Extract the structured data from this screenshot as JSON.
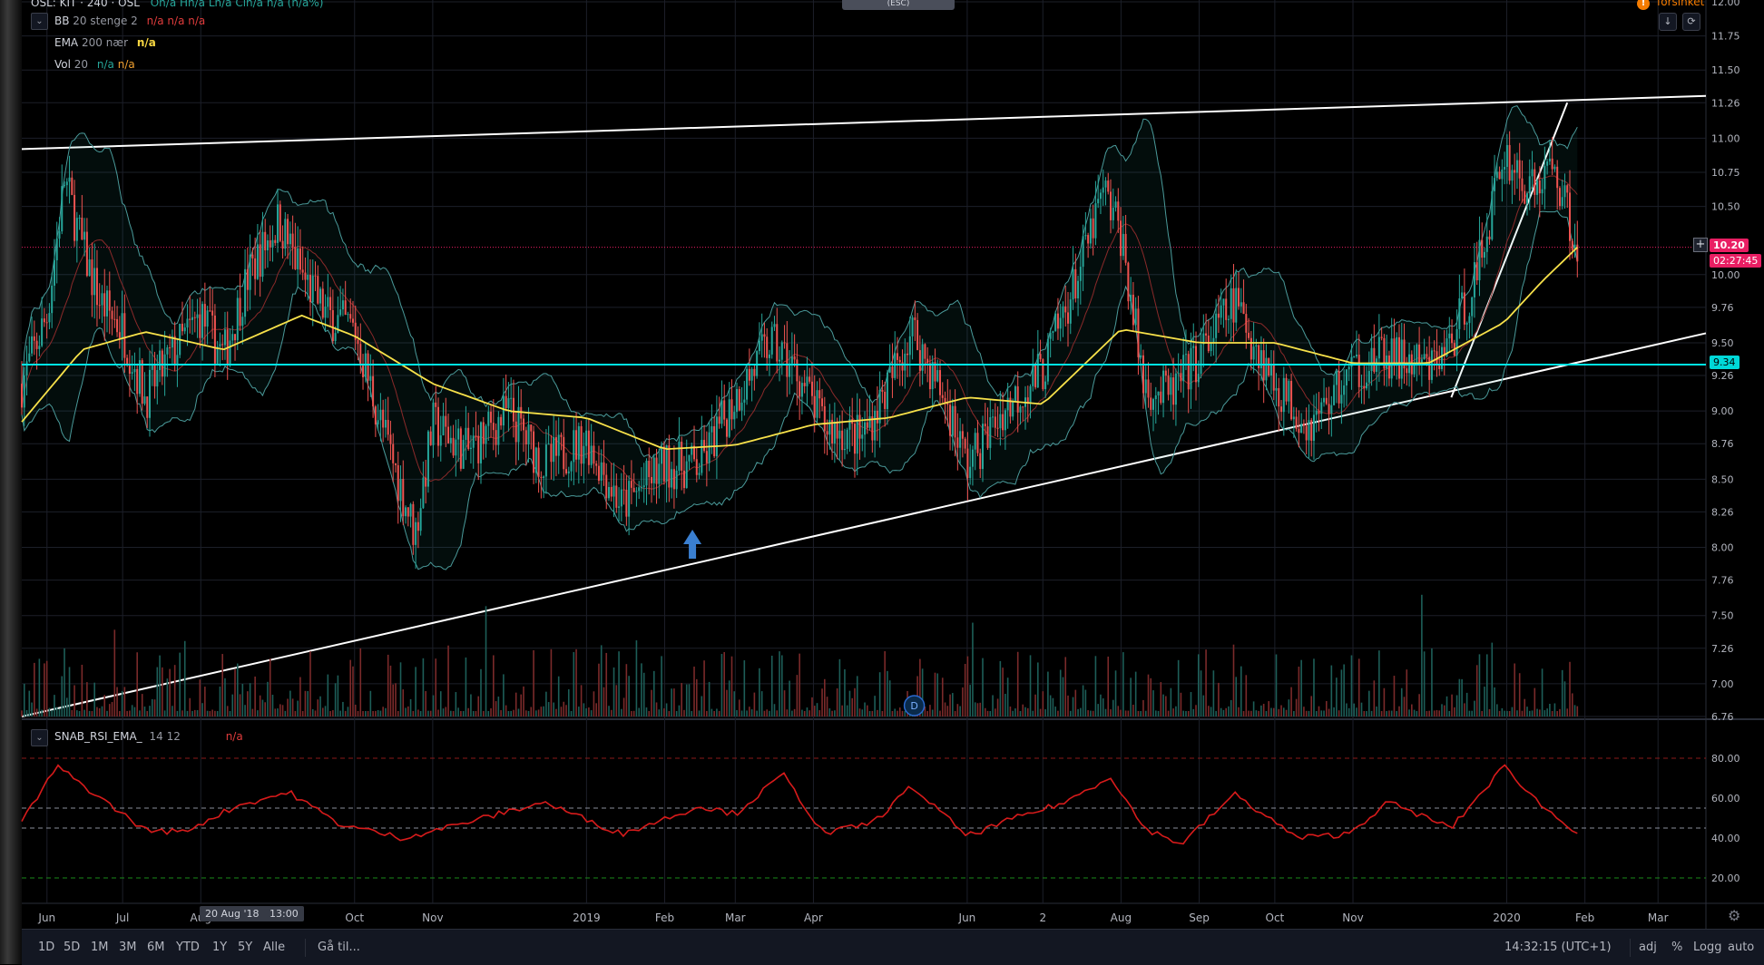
{
  "legend": {
    "title_partial": "OSL: KIT · 240 · OSL",
    "title_values": "Ön/a Hn/a Ln/a Cln/a n/a (n/a%)",
    "bb_name": "BB",
    "bb_params": "20 stenge 2",
    "bb_values": "n/a n/a n/a",
    "ema_name": "EMA",
    "ema_params": "200 nær",
    "ema_value": "n/a",
    "vol_name": "Vol",
    "vol_params": "20",
    "vol_value_1": "n/a",
    "vol_value_2": "n/a"
  },
  "rsi_legend": {
    "name": "SNAB_RSI_EMA_",
    "params": "14 12",
    "value": "n/a"
  },
  "top": {
    "esc_label": "(ESC)",
    "delayed_label": "forsinket"
  },
  "price_tags": {
    "current": "10.20",
    "countdown": "02:27:45",
    "hline": "9.34"
  },
  "x_axis": {
    "labels": [
      "Jun",
      "Jul",
      "Aug",
      "Oct",
      "Nov",
      "2019",
      "Feb",
      "Mar",
      "Apr",
      "Jun",
      "2",
      "Aug",
      "Sep",
      "Oct",
      "Nov",
      "2020",
      "Feb",
      "Mar"
    ],
    "crosshair_date": "20 Aug '18",
    "crosshair_time": "13:00"
  },
  "dividend_marker": "D",
  "bottom_bar": {
    "timeframes": [
      "1D",
      "5D",
      "1M",
      "3M",
      "6M",
      "YTD",
      "1Y",
      "5Y",
      "Alle"
    ],
    "goto": "Gå til...",
    "clock": "14:32:15 (UTC+1)",
    "adj": "adj",
    "percent": "%",
    "log": "Logg",
    "auto": "auto"
  },
  "colors": {
    "background": "#000000",
    "up": "#26a69a",
    "down": "#ef5350",
    "ema": "#f7e14a",
    "bb": "#4a9a9a",
    "hline": "#00e5e5",
    "rsi": "#d81b1b",
    "current_price_tag": "#e91e63"
  },
  "chart_data": [
    {
      "type": "candlestick",
      "title": "OSL: KIT · 240",
      "y_axis_ticks": [
        "12.00",
        "11.75",
        "11.50",
        "11.26",
        "11.00",
        "10.75",
        "10.50",
        "10.00",
        "9.76",
        "9.50",
        "9.26",
        "9.00",
        "8.76",
        "8.50",
        "8.26",
        "8.00",
        "7.76",
        "7.50",
        "7.26",
        "7.00",
        "6.76"
      ],
      "ylim": [
        6.76,
        12.0
      ],
      "x_range": [
        "2018-05-22",
        "2020-03-20"
      ],
      "close_series": [
        {
          "date": "2018-05-22",
          "value": 9.2
        },
        {
          "date": "2018-06-01",
          "value": 9.7
        },
        {
          "date": "2018-06-08",
          "value": 10.7
        },
        {
          "date": "2018-06-15",
          "value": 10.2
        },
        {
          "date": "2018-06-22",
          "value": 9.8
        },
        {
          "date": "2018-07-01",
          "value": 9.6
        },
        {
          "date": "2018-07-10",
          "value": 9.1
        },
        {
          "date": "2018-07-20",
          "value": 9.4
        },
        {
          "date": "2018-08-01",
          "value": 9.7
        },
        {
          "date": "2018-08-10",
          "value": 9.4
        },
        {
          "date": "2018-08-20",
          "value": 10.0
        },
        {
          "date": "2018-09-01",
          "value": 10.4
        },
        {
          "date": "2018-09-10",
          "value": 10.0
        },
        {
          "date": "2018-09-20",
          "value": 9.7
        },
        {
          "date": "2018-10-01",
          "value": 9.6
        },
        {
          "date": "2018-10-10",
          "value": 9.0
        },
        {
          "date": "2018-10-20",
          "value": 8.4
        },
        {
          "date": "2018-10-25",
          "value": 8.1
        },
        {
          "date": "2018-11-01",
          "value": 8.9
        },
        {
          "date": "2018-11-15",
          "value": 8.7
        },
        {
          "date": "2018-12-01",
          "value": 9.0
        },
        {
          "date": "2018-12-15",
          "value": 8.6
        },
        {
          "date": "2019-01-01",
          "value": 8.8
        },
        {
          "date": "2019-01-15",
          "value": 8.3
        },
        {
          "date": "2019-02-01",
          "value": 8.6
        },
        {
          "date": "2019-02-15",
          "value": 8.6
        },
        {
          "date": "2019-03-01",
          "value": 9.1
        },
        {
          "date": "2019-03-15",
          "value": 9.5
        },
        {
          "date": "2019-03-25",
          "value": 9.3
        },
        {
          "date": "2019-04-05",
          "value": 8.9
        },
        {
          "date": "2019-04-20",
          "value": 8.8
        },
        {
          "date": "2019-05-01",
          "value": 9.2
        },
        {
          "date": "2019-05-10",
          "value": 9.6
        },
        {
          "date": "2019-05-25",
          "value": 9.0
        },
        {
          "date": "2019-06-01",
          "value": 8.6
        },
        {
          "date": "2019-06-15",
          "value": 9.0
        },
        {
          "date": "2019-07-01",
          "value": 9.3
        },
        {
          "date": "2019-07-15",
          "value": 10.0
        },
        {
          "date": "2019-07-25",
          "value": 10.6
        },
        {
          "date": "2019-08-01",
          "value": 10.3
        },
        {
          "date": "2019-08-10",
          "value": 9.2
        },
        {
          "date": "2019-08-20",
          "value": 9.1
        },
        {
          "date": "2019-09-01",
          "value": 9.4
        },
        {
          "date": "2019-09-15",
          "value": 9.8
        },
        {
          "date": "2019-10-01",
          "value": 9.2
        },
        {
          "date": "2019-10-15",
          "value": 8.9
        },
        {
          "date": "2019-11-01",
          "value": 9.3
        },
        {
          "date": "2019-11-15",
          "value": 9.4
        },
        {
          "date": "2019-12-01",
          "value": 9.3
        },
        {
          "date": "2019-12-10",
          "value": 9.5
        },
        {
          "date": "2019-12-20",
          "value": 10.0
        },
        {
          "date": "2019-12-31",
          "value": 10.9
        },
        {
          "date": "2020-01-10",
          "value": 10.6
        },
        {
          "date": "2020-01-20",
          "value": 10.8
        },
        {
          "date": "2020-01-29",
          "value": 10.2
        }
      ],
      "ema_200": [
        {
          "date": "2018-05-22",
          "value": 8.92
        },
        {
          "date": "2018-06-15",
          "value": 9.45
        },
        {
          "date": "2018-07-10",
          "value": 9.58
        },
        {
          "date": "2018-08-10",
          "value": 9.45
        },
        {
          "date": "2018-09-10",
          "value": 9.7
        },
        {
          "date": "2018-10-01",
          "value": 9.55
        },
        {
          "date": "2018-11-01",
          "value": 9.2
        },
        {
          "date": "2018-12-01",
          "value": 9.0
        },
        {
          "date": "2019-01-01",
          "value": 8.95
        },
        {
          "date": "2019-02-01",
          "value": 8.72
        },
        {
          "date": "2019-03-01",
          "value": 8.75
        },
        {
          "date": "2019-04-01",
          "value": 8.9
        },
        {
          "date": "2019-05-01",
          "value": 8.95
        },
        {
          "date": "2019-06-01",
          "value": 9.1
        },
        {
          "date": "2019-07-01",
          "value": 9.05
        },
        {
          "date": "2019-08-01",
          "value": 9.6
        },
        {
          "date": "2019-09-01",
          "value": 9.5
        },
        {
          "date": "2019-10-01",
          "value": 9.5
        },
        {
          "date": "2019-11-01",
          "value": 9.35
        },
        {
          "date": "2019-12-01",
          "value": 9.35
        },
        {
          "date": "2019-12-31",
          "value": 9.65
        },
        {
          "date": "2020-01-15",
          "value": 9.95
        },
        {
          "date": "2020-01-29",
          "value": 10.2
        }
      ],
      "horizontal_line": 9.34,
      "current_price": 10.2
    },
    {
      "type": "line",
      "title": "SNAB_RSI_EMA_ 14 12",
      "y_axis_ticks": [
        "80.00",
        "60.00",
        "40.00",
        "20.00"
      ],
      "ylim": [
        10,
        90
      ],
      "reference_lines": [
        80,
        55,
        45,
        20
      ],
      "series": [
        {
          "values": [
            {
              "date": "2018-05-22",
              "value": 48
            },
            {
              "date": "2018-06-05",
              "value": 76
            },
            {
              "date": "2018-06-20",
              "value": 62
            },
            {
              "date": "2018-07-10",
              "value": 44
            },
            {
              "date": "2018-07-25",
              "value": 43
            },
            {
              "date": "2018-08-15",
              "value": 56
            },
            {
              "date": "2018-09-05",
              "value": 63
            },
            {
              "date": "2018-09-25",
              "value": 47
            },
            {
              "date": "2018-10-20",
              "value": 40
            },
            {
              "date": "2018-11-15",
              "value": 48
            },
            {
              "date": "2018-12-15",
              "value": 58
            },
            {
              "date": "2019-01-15",
              "value": 42
            },
            {
              "date": "2019-02-15",
              "value": 56
            },
            {
              "date": "2019-03-01",
              "value": 52
            },
            {
              "date": "2019-03-20",
              "value": 72
            },
            {
              "date": "2019-04-05",
              "value": 42
            },
            {
              "date": "2019-04-25",
              "value": 48
            },
            {
              "date": "2019-05-10",
              "value": 66
            },
            {
              "date": "2019-06-01",
              "value": 41
            },
            {
              "date": "2019-06-20",
              "value": 50
            },
            {
              "date": "2019-07-10",
              "value": 58
            },
            {
              "date": "2019-07-28",
              "value": 71
            },
            {
              "date": "2019-08-10",
              "value": 45
            },
            {
              "date": "2019-08-25",
              "value": 37
            },
            {
              "date": "2019-09-15",
              "value": 62
            },
            {
              "date": "2019-10-10",
              "value": 40
            },
            {
              "date": "2019-10-30",
              "value": 42
            },
            {
              "date": "2019-11-15",
              "value": 58
            },
            {
              "date": "2019-12-10",
              "value": 45
            },
            {
              "date": "2019-12-31",
              "value": 76
            },
            {
              "date": "2020-01-15",
              "value": 56
            },
            {
              "date": "2020-01-29",
              "value": 43
            }
          ]
        }
      ]
    }
  ]
}
